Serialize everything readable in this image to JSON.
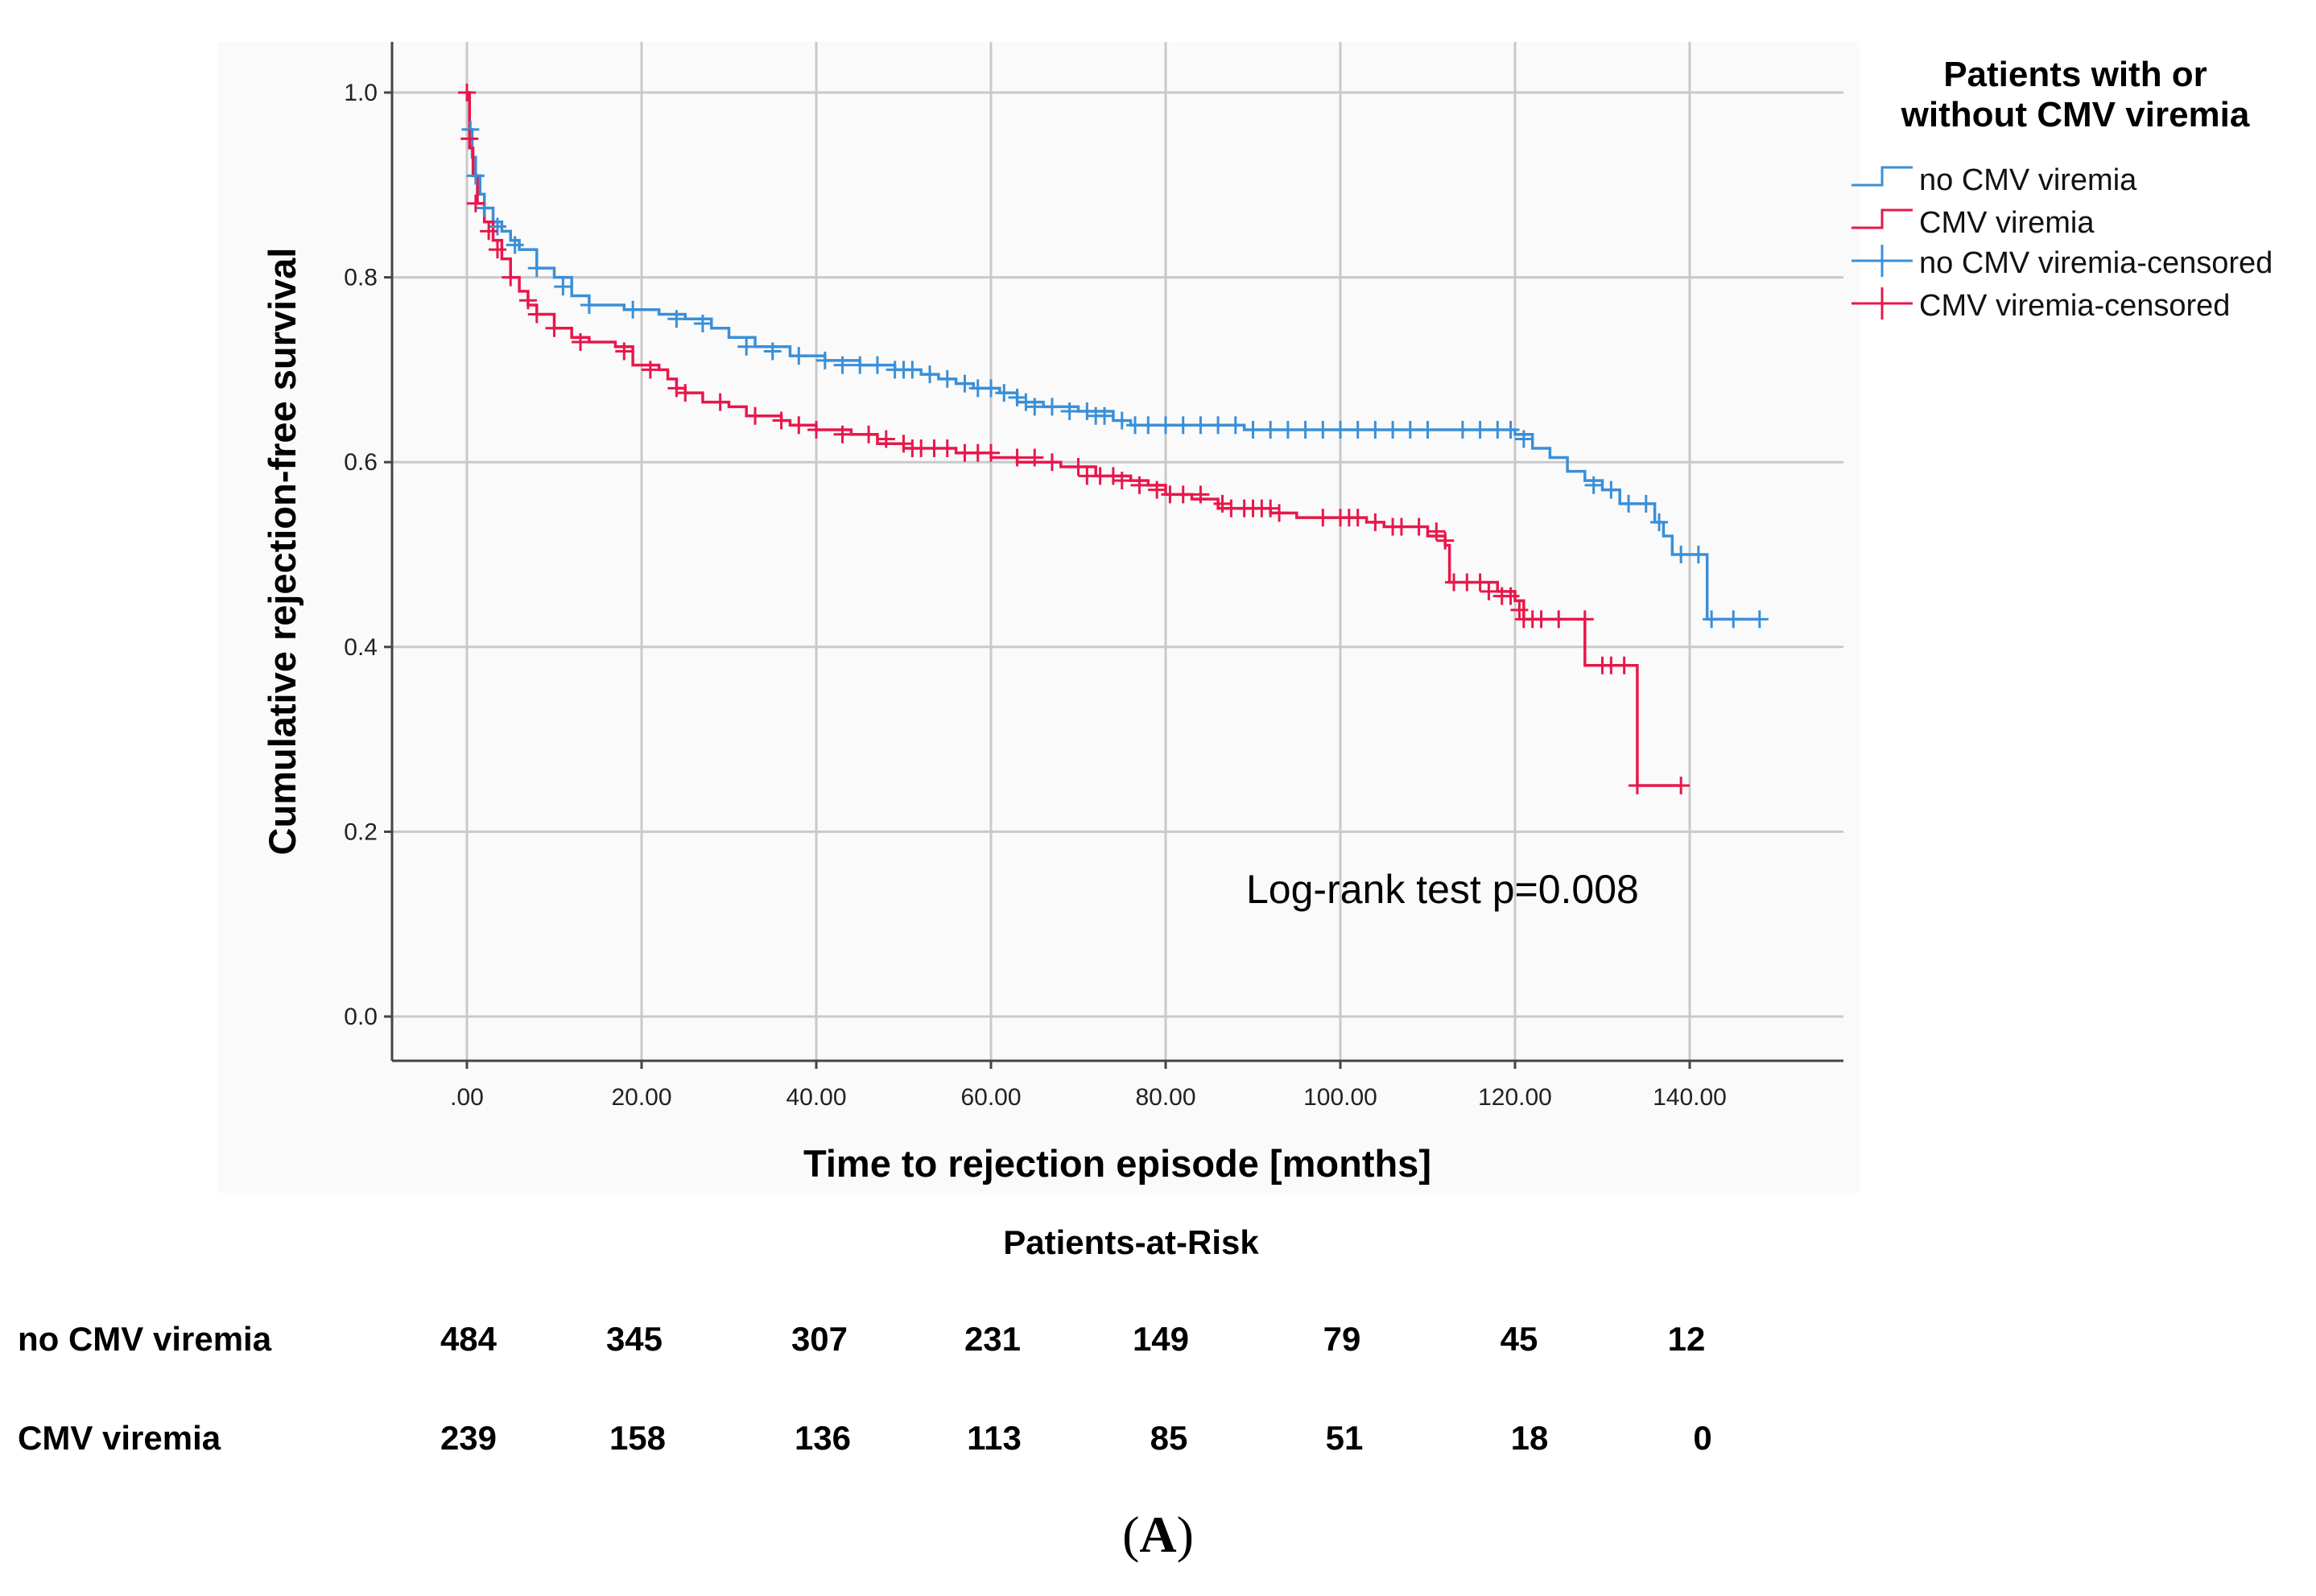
{
  "chart_data": {
    "type": "line",
    "subtype": "kaplan-meier",
    "xlabel": "Time to rejection episode [months]",
    "ylabel": "Cumulative rejection-free survival",
    "xlim": [
      -8,
      158
    ],
    "ylim": [
      -0.05,
      1.05
    ],
    "x_ticks": [
      0,
      20,
      40,
      60,
      80,
      100,
      120,
      140
    ],
    "x_tick_labels": [
      ".00",
      "20.00",
      "40.00",
      "60.00",
      "80.00",
      "100.00",
      "120.00",
      "140.00"
    ],
    "y_ticks": [
      0.0,
      0.2,
      0.4,
      0.6,
      0.8,
      1.0
    ],
    "y_tick_labels": [
      "0.0",
      "0.2",
      "0.4",
      "0.6",
      "0.8",
      "1.0"
    ],
    "grid": true,
    "legend": {
      "title_line1": "Patients with or",
      "title_line2": "without  CMV viremia",
      "position": "top-right",
      "entries": [
        "no CMV viremia",
        "CMV viremia",
        "no CMV viremia-censored",
        "CMV viremia-censored"
      ]
    },
    "annotation": "Log-rank test p=0.008",
    "series": [
      {
        "name": "no CMV viremia",
        "color": "#3a8fd8",
        "steps": [
          [
            0,
            1.0
          ],
          [
            0.3,
            0.96
          ],
          [
            0.6,
            0.93
          ],
          [
            1,
            0.91
          ],
          [
            1.5,
            0.89
          ],
          [
            2,
            0.875
          ],
          [
            3,
            0.86
          ],
          [
            4,
            0.85
          ],
          [
            5,
            0.84
          ],
          [
            6,
            0.83
          ],
          [
            8,
            0.81
          ],
          [
            10,
            0.8
          ],
          [
            12,
            0.78
          ],
          [
            14,
            0.77
          ],
          [
            18,
            0.765
          ],
          [
            22,
            0.76
          ],
          [
            25,
            0.755
          ],
          [
            28,
            0.745
          ],
          [
            30,
            0.735
          ],
          [
            33,
            0.725
          ],
          [
            37,
            0.715
          ],
          [
            41,
            0.71
          ],
          [
            45,
            0.705
          ],
          [
            49,
            0.7
          ],
          [
            52,
            0.695
          ],
          [
            54,
            0.69
          ],
          [
            56,
            0.685
          ],
          [
            58,
            0.68
          ],
          [
            61,
            0.675
          ],
          [
            63,
            0.665
          ],
          [
            66,
            0.66
          ],
          [
            70,
            0.655
          ],
          [
            74,
            0.645
          ],
          [
            76,
            0.64
          ],
          [
            89,
            0.635
          ],
          [
            120,
            0.63
          ],
          [
            122,
            0.615
          ],
          [
            124,
            0.605
          ],
          [
            126,
            0.59
          ],
          [
            128,
            0.58
          ],
          [
            130,
            0.57
          ],
          [
            132,
            0.555
          ],
          [
            136,
            0.535
          ],
          [
            137,
            0.52
          ],
          [
            138,
            0.5
          ],
          [
            142,
            0.43
          ],
          [
            148,
            0.43
          ]
        ],
        "censored": [
          [
            0,
            1.0
          ],
          [
            0.4,
            0.96
          ],
          [
            1,
            0.91
          ],
          [
            2,
            0.875
          ],
          [
            3.5,
            0.855
          ],
          [
            5.5,
            0.835
          ],
          [
            8,
            0.81
          ],
          [
            11,
            0.79
          ],
          [
            14,
            0.77
          ],
          [
            19,
            0.765
          ],
          [
            24,
            0.755
          ],
          [
            27,
            0.75
          ],
          [
            32,
            0.725
          ],
          [
            35,
            0.72
          ],
          [
            38,
            0.715
          ],
          [
            41,
            0.71
          ],
          [
            43,
            0.705
          ],
          [
            45,
            0.705
          ],
          [
            47,
            0.705
          ],
          [
            49,
            0.7
          ],
          [
            50,
            0.7
          ],
          [
            51,
            0.7
          ],
          [
            53,
            0.695
          ],
          [
            55,
            0.69
          ],
          [
            57,
            0.685
          ],
          [
            58.5,
            0.68
          ],
          [
            60,
            0.68
          ],
          [
            61.5,
            0.675
          ],
          [
            63,
            0.67
          ],
          [
            64,
            0.665
          ],
          [
            65,
            0.66
          ],
          [
            67,
            0.66
          ],
          [
            69,
            0.655
          ],
          [
            71,
            0.655
          ],
          [
            72,
            0.65
          ],
          [
            73,
            0.65
          ],
          [
            75,
            0.645
          ],
          [
            76.5,
            0.64
          ],
          [
            78,
            0.64
          ],
          [
            80,
            0.64
          ],
          [
            82,
            0.64
          ],
          [
            84,
            0.64
          ],
          [
            86,
            0.64
          ],
          [
            88,
            0.64
          ],
          [
            90,
            0.635
          ],
          [
            92,
            0.635
          ],
          [
            94,
            0.635
          ],
          [
            96,
            0.635
          ],
          [
            98,
            0.635
          ],
          [
            100,
            0.635
          ],
          [
            102,
            0.635
          ],
          [
            104,
            0.635
          ],
          [
            106,
            0.635
          ],
          [
            108,
            0.635
          ],
          [
            110,
            0.635
          ],
          [
            114,
            0.635
          ],
          [
            116,
            0.635
          ],
          [
            118,
            0.635
          ],
          [
            119.5,
            0.635
          ],
          [
            121,
            0.625
          ],
          [
            129,
            0.575
          ],
          [
            131,
            0.57
          ],
          [
            133,
            0.555
          ],
          [
            135,
            0.555
          ],
          [
            136.5,
            0.535
          ],
          [
            139,
            0.5
          ],
          [
            141,
            0.5
          ],
          [
            142.5,
            0.43
          ],
          [
            145,
            0.43
          ],
          [
            148,
            0.43
          ]
        ]
      },
      {
        "name": "CMV viremia",
        "color": "#e8174a",
        "steps": [
          [
            0,
            1.0
          ],
          [
            0.3,
            0.94
          ],
          [
            0.7,
            0.91
          ],
          [
            1.2,
            0.88
          ],
          [
            2,
            0.86
          ],
          [
            3,
            0.84
          ],
          [
            4,
            0.82
          ],
          [
            5,
            0.8
          ],
          [
            6,
            0.785
          ],
          [
            7,
            0.77
          ],
          [
            8,
            0.76
          ],
          [
            10,
            0.745
          ],
          [
            12,
            0.735
          ],
          [
            14,
            0.73
          ],
          [
            17,
            0.725
          ],
          [
            19,
            0.705
          ],
          [
            22,
            0.7
          ],
          [
            23,
            0.69
          ],
          [
            24,
            0.68
          ],
          [
            25,
            0.675
          ],
          [
            27,
            0.665
          ],
          [
            30,
            0.66
          ],
          [
            32,
            0.65
          ],
          [
            36,
            0.645
          ],
          [
            37,
            0.64
          ],
          [
            40,
            0.635
          ],
          [
            44,
            0.63
          ],
          [
            47,
            0.62
          ],
          [
            50,
            0.615
          ],
          [
            56,
            0.61
          ],
          [
            60,
            0.605
          ],
          [
            63,
            0.6
          ],
          [
            68,
            0.595
          ],
          [
            72,
            0.585
          ],
          [
            76,
            0.58
          ],
          [
            78,
            0.575
          ],
          [
            80,
            0.565
          ],
          [
            83,
            0.56
          ],
          [
            86,
            0.55
          ],
          [
            92,
            0.545
          ],
          [
            95,
            0.54
          ],
          [
            103,
            0.535
          ],
          [
            105,
            0.53
          ],
          [
            110,
            0.52
          ],
          [
            112,
            0.51
          ],
          [
            112.5,
            0.47
          ],
          [
            118,
            0.46
          ],
          [
            120,
            0.45
          ],
          [
            121,
            0.43
          ],
          [
            128,
            0.38
          ],
          [
            134,
            0.25
          ],
          [
            139,
            0.25
          ]
        ],
        "censored": [
          [
            0,
            1.0
          ],
          [
            0.3,
            0.95
          ],
          [
            1,
            0.88
          ],
          [
            2.5,
            0.85
          ],
          [
            3.5,
            0.83
          ],
          [
            5,
            0.8
          ],
          [
            7,
            0.775
          ],
          [
            8,
            0.76
          ],
          [
            10,
            0.745
          ],
          [
            13,
            0.73
          ],
          [
            18,
            0.72
          ],
          [
            21,
            0.7
          ],
          [
            24,
            0.68
          ],
          [
            25,
            0.675
          ],
          [
            29,
            0.665
          ],
          [
            33,
            0.65
          ],
          [
            36,
            0.645
          ],
          [
            38,
            0.64
          ],
          [
            40,
            0.635
          ],
          [
            43,
            0.63
          ],
          [
            46,
            0.63
          ],
          [
            48,
            0.625
          ],
          [
            50,
            0.62
          ],
          [
            51,
            0.615
          ],
          [
            52,
            0.615
          ],
          [
            53.5,
            0.615
          ],
          [
            55,
            0.615
          ],
          [
            57,
            0.61
          ],
          [
            58.5,
            0.61
          ],
          [
            60,
            0.61
          ],
          [
            63,
            0.605
          ],
          [
            65,
            0.605
          ],
          [
            67,
            0.6
          ],
          [
            70,
            0.595
          ],
          [
            71,
            0.585
          ],
          [
            72.5,
            0.585
          ],
          [
            74,
            0.585
          ],
          [
            75,
            0.58
          ],
          [
            77,
            0.575
          ],
          [
            79,
            0.57
          ],
          [
            80.5,
            0.565
          ],
          [
            82,
            0.565
          ],
          [
            84,
            0.565
          ],
          [
            86.5,
            0.555
          ],
          [
            87.5,
            0.55
          ],
          [
            89,
            0.55
          ],
          [
            90,
            0.55
          ],
          [
            91,
            0.55
          ],
          [
            92,
            0.55
          ],
          [
            93,
            0.545
          ],
          [
            98,
            0.54
          ],
          [
            100,
            0.54
          ],
          [
            101,
            0.54
          ],
          [
            102,
            0.54
          ],
          [
            104,
            0.535
          ],
          [
            106,
            0.53
          ],
          [
            107,
            0.53
          ],
          [
            109,
            0.53
          ],
          [
            111,
            0.525
          ],
          [
            112,
            0.515
          ],
          [
            113,
            0.47
          ],
          [
            114.5,
            0.47
          ],
          [
            116,
            0.47
          ],
          [
            117,
            0.46
          ],
          [
            118.5,
            0.455
          ],
          [
            119.5,
            0.455
          ],
          [
            120.5,
            0.44
          ],
          [
            121,
            0.43
          ],
          [
            122,
            0.43
          ],
          [
            123,
            0.43
          ],
          [
            125,
            0.43
          ],
          [
            128,
            0.43
          ],
          [
            130,
            0.38
          ],
          [
            131,
            0.38
          ],
          [
            132.5,
            0.38
          ],
          [
            134,
            0.25
          ],
          [
            139,
            0.25
          ]
        ]
      }
    ]
  },
  "at_risk": {
    "title": "Patients-at-Risk",
    "rows": [
      {
        "label": "no CMV viremia",
        "counts": [
          "484",
          "345",
          "307",
          "231",
          "149",
          "79",
          "45",
          "12"
        ]
      },
      {
        "label": "CMV viremia",
        "counts": [
          "239",
          "158",
          "136",
          "113",
          "85",
          "51",
          "18",
          "0"
        ]
      }
    ]
  },
  "panel_label": "A",
  "panel_paren_open": "(",
  "panel_paren_close": ")"
}
